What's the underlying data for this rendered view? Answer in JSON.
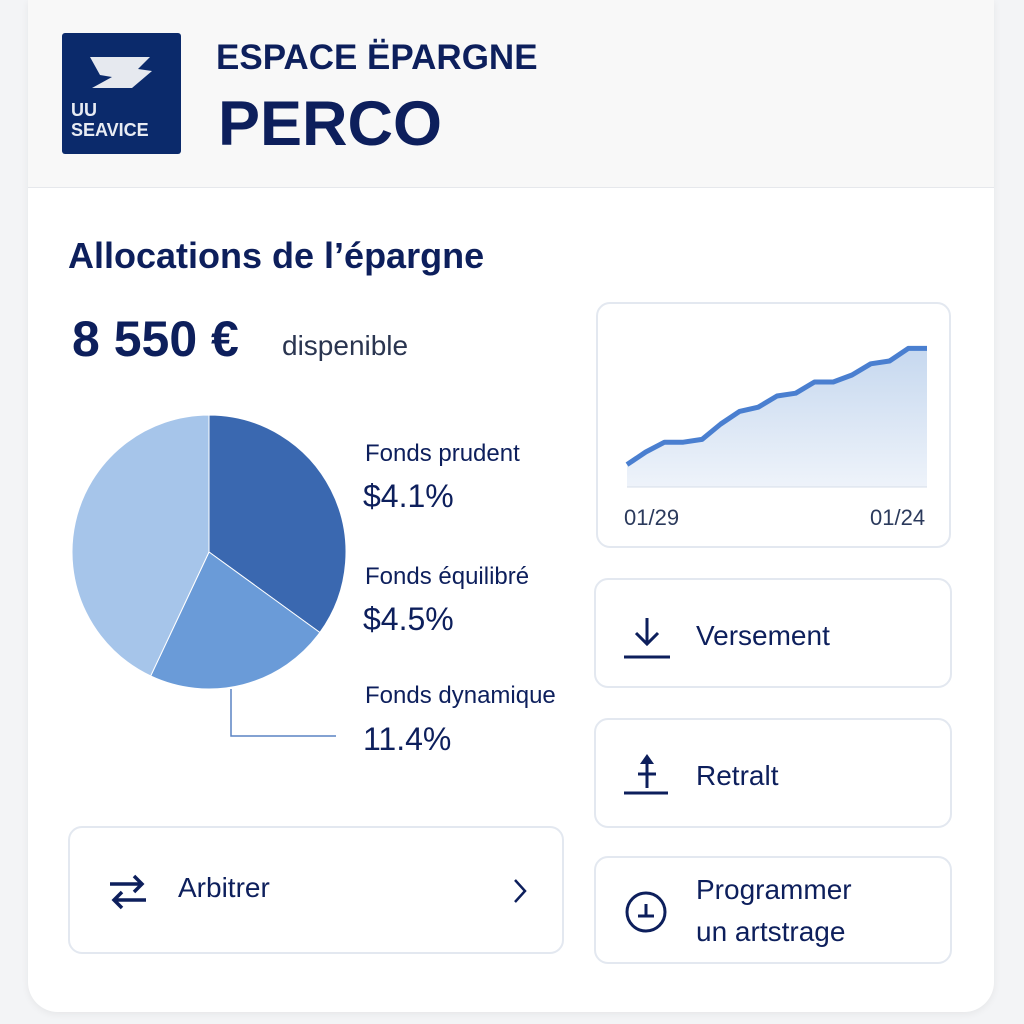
{
  "header": {
    "logo_text_line1": "UU",
    "logo_text_line2": "SEAVICE",
    "subtitle": "ESPACE ËPARGNE",
    "title": "PERCO"
  },
  "section_title": "Allocations de l’épargne",
  "balance": {
    "amount": "8 550 €",
    "label": "dispenible"
  },
  "chart_data": [
    {
      "type": "pie",
      "slices": [
        {
          "name": "Fonds prudent",
          "label": "$4.1%",
          "fraction": 0.35,
          "color": "#3a68b0"
        },
        {
          "name": "Fonds équilibré",
          "label": "$4.5%",
          "fraction": 0.22,
          "color": "#6a9bd8"
        },
        {
          "name": "Fonds dynamique",
          "label": "11.4%",
          "fraction": 0.43,
          "color": "#a6c5ea"
        }
      ]
    },
    {
      "type": "area",
      "x_tick_labels": [
        "01/29",
        "01/24"
      ],
      "values": [
        16,
        25,
        32,
        32,
        34,
        45,
        54,
        57,
        65,
        67,
        75,
        75,
        80,
        88,
        90,
        99,
        99
      ],
      "ylim": [
        0,
        100
      ],
      "grid": false,
      "line_color": "#4a7fd0"
    }
  ],
  "actions": {
    "deposit": {
      "label": "Versement",
      "icon": "download-icon"
    },
    "withdraw": {
      "label": "Retralt",
      "icon": "upload-icon"
    },
    "schedule": {
      "label_line1": "Programmer",
      "label_line2": "un artstrage",
      "icon": "clock-icon"
    },
    "arbitrate": {
      "label": "Arbitrer",
      "icon": "swap-icon",
      "chevron": "chevron-right-icon"
    }
  }
}
